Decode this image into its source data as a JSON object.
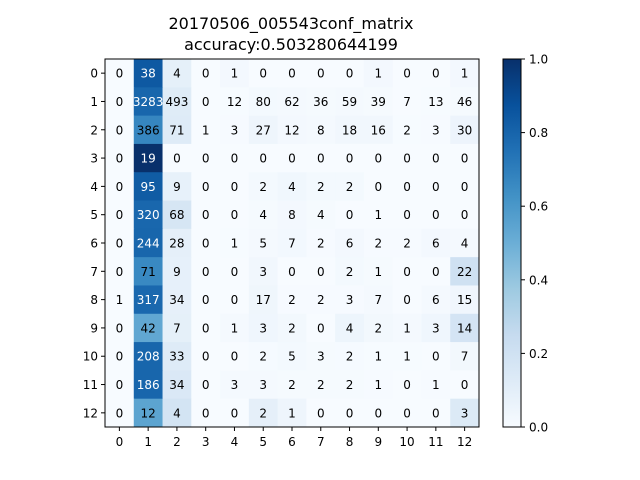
{
  "chart_data": {
    "type": "heatmap",
    "title_line1": "20170506_005543conf_matrix",
    "title_line2": "accuracy:0.503280644199",
    "x_labels": [
      "0",
      "1",
      "2",
      "3",
      "4",
      "5",
      "6",
      "7",
      "8",
      "9",
      "10",
      "11",
      "12"
    ],
    "y_labels": [
      "0",
      "1",
      "2",
      "3",
      "4",
      "5",
      "6",
      "7",
      "8",
      "9",
      "10",
      "11",
      "12"
    ],
    "matrix": [
      [
        0,
        38,
        4,
        0,
        1,
        0,
        0,
        0,
        0,
        1,
        0,
        0,
        1
      ],
      [
        0,
        3283,
        493,
        0,
        12,
        80,
        62,
        36,
        59,
        39,
        7,
        13,
        46
      ],
      [
        0,
        386,
        71,
        1,
        3,
        27,
        12,
        8,
        18,
        16,
        2,
        3,
        30
      ],
      [
        0,
        19,
        0,
        0,
        0,
        0,
        0,
        0,
        0,
        0,
        0,
        0,
        0
      ],
      [
        0,
        95,
        9,
        0,
        0,
        2,
        4,
        2,
        2,
        0,
        0,
        0,
        0
      ],
      [
        0,
        320,
        68,
        0,
        0,
        4,
        8,
        4,
        0,
        1,
        0,
        0,
        0
      ],
      [
        0,
        244,
        28,
        0,
        1,
        5,
        7,
        2,
        6,
        2,
        2,
        6,
        4
      ],
      [
        0,
        71,
        9,
        0,
        0,
        3,
        0,
        0,
        2,
        1,
        0,
        0,
        22
      ],
      [
        1,
        317,
        34,
        0,
        0,
        17,
        2,
        2,
        3,
        7,
        0,
        6,
        15
      ],
      [
        0,
        42,
        7,
        0,
        1,
        3,
        2,
        0,
        4,
        2,
        1,
        3,
        14
      ],
      [
        0,
        208,
        33,
        0,
        0,
        2,
        5,
        3,
        2,
        1,
        1,
        0,
        7
      ],
      [
        0,
        186,
        34,
        0,
        3,
        3,
        2,
        2,
        2,
        1,
        0,
        1,
        0
      ],
      [
        0,
        12,
        4,
        0,
        0,
        2,
        1,
        0,
        0,
        0,
        0,
        0,
        3
      ]
    ],
    "colorbar": {
      "range": [
        0.0,
        1.0
      ],
      "ticks": [
        "0.0",
        "0.2",
        "0.4",
        "0.6",
        "0.8",
        "1.0"
      ],
      "colormap": "Blues"
    }
  }
}
